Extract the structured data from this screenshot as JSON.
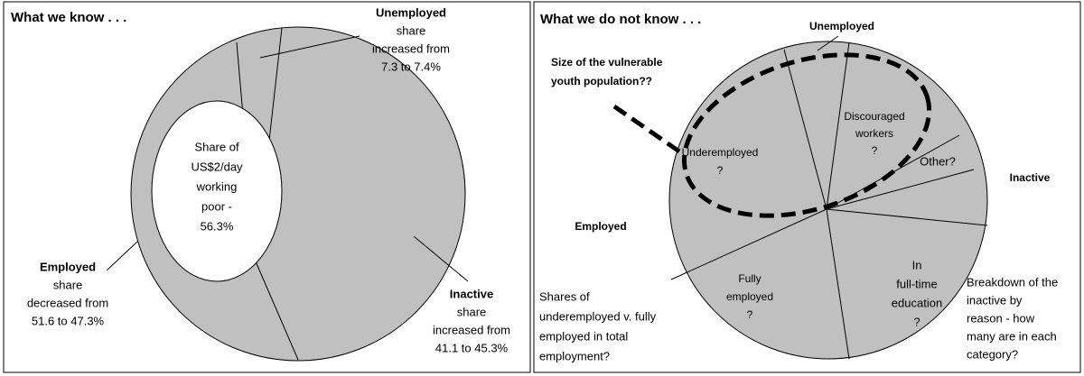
{
  "left": {
    "title": "What we know . . .",
    "unemployed": [
      "Unemployed",
      "share",
      "increased from",
      "7.3 to 7.4%"
    ],
    "ellipse": [
      "Share of",
      "US$2/day",
      "working",
      "poor -",
      "56.3%"
    ],
    "employed": [
      "Employed",
      "share",
      "decreased from",
      "51.6 to 47.3%"
    ],
    "inactive": [
      "Inactive",
      "share",
      "increased from",
      "41.1 to 45.3%"
    ]
  },
  "right": {
    "title": "What we do not know . . .",
    "unemployed": "Unemployed",
    "vulnerable": [
      "Size of the vulnerable",
      "youth population??"
    ],
    "underemployed": [
      "Underemployed",
      "?"
    ],
    "discouraged": [
      "Discouraged",
      "workers",
      "?"
    ],
    "other": "Other?",
    "inactive": "Inactive",
    "employed": "Employed",
    "fully": [
      "Fully",
      "employed",
      "?"
    ],
    "education": [
      "In",
      "full-time",
      "education",
      "?"
    ],
    "note_left": [
      "Shares of",
      "underemployed v. fully",
      "employed in total",
      "employment?"
    ],
    "note_right": [
      "Breakdown of the",
      "inactive by",
      "reason - how",
      "many are in each",
      "category?"
    ]
  }
}
